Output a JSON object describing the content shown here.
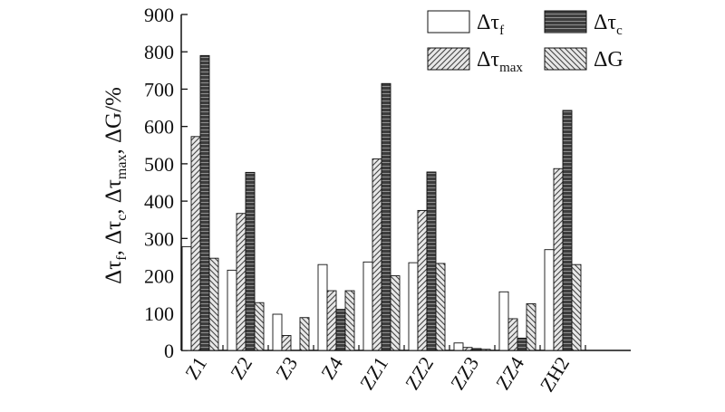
{
  "chart_data": {
    "type": "bar",
    "categories": [
      "Z1",
      "Z2",
      "Z3",
      "Z4",
      "ZZ1",
      "ZZ2",
      "ZZ3",
      "ZZ4",
      "ZH2"
    ],
    "series": [
      {
        "name": "Δτf",
        "symbol": "Δτ",
        "subscript": "f",
        "pattern": "white",
        "values": [
          278,
          215,
          97,
          230,
          237,
          235,
          20,
          157,
          270
        ]
      },
      {
        "name": "Δτmax",
        "symbol": "Δτ",
        "subscript": "max",
        "pattern": "diag-right",
        "values": [
          573,
          367,
          40,
          160,
          513,
          375,
          8,
          85,
          487
        ]
      },
      {
        "name": "Δτc",
        "symbol": "Δτ",
        "subscript": "c",
        "pattern": "dark-horizontal",
        "values": [
          790,
          477,
          null,
          110,
          715,
          478,
          5,
          33,
          643
        ]
      },
      {
        "name": "ΔG",
        "symbol": "ΔG",
        "subscript": "",
        "pattern": "diag-left",
        "values": [
          247,
          128,
          88,
          160,
          200,
          233,
          3,
          125,
          230
        ]
      }
    ],
    "ylim": [
      0,
      900
    ],
    "yticks": [
      0,
      100,
      200,
      300,
      400,
      500,
      600,
      700,
      800,
      900
    ],
    "ylabel": {
      "parts": [
        "Δτ",
        "f",
        ", Δτ",
        "c",
        ", Δτ",
        "max",
        ", ΔG/%"
      ]
    },
    "legend_position": "top-right",
    "grid": false,
    "colors": {
      "axis": "#111111",
      "dark_bar": "#3d3d3d",
      "dark_stripe": "#8a8a8a",
      "hatch": "#555555"
    }
  }
}
